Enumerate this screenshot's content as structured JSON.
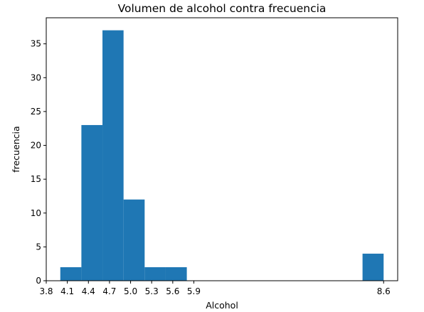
{
  "chart_data": {
    "type": "bar",
    "title": "Volumen de alcohol contra frecuencia",
    "xlabel": "Alcohol",
    "ylabel": "frecuencia",
    "bin_width": 0.3,
    "bins": [
      {
        "start": 4.0,
        "end": 4.3,
        "count": 2
      },
      {
        "start": 4.3,
        "end": 4.6,
        "count": 23
      },
      {
        "start": 4.6,
        "end": 4.9,
        "count": 37
      },
      {
        "start": 4.9,
        "end": 5.2,
        "count": 12
      },
      {
        "start": 5.2,
        "end": 5.5,
        "count": 2
      },
      {
        "start": 5.5,
        "end": 5.8,
        "count": 2
      },
      {
        "start": 8.3,
        "end": 8.6,
        "count": 4
      }
    ],
    "xlim": [
      3.8,
      8.8
    ],
    "ylim": [
      0,
      38.85
    ],
    "xticks": [
      3.8,
      4.1,
      4.4,
      4.7,
      5.0,
      5.3,
      5.6,
      5.9,
      8.6
    ],
    "xtick_labels": [
      "3.8",
      "4.1",
      "4.4",
      "4.7",
      "5.0",
      "5.3",
      "5.6",
      "5.9",
      "8.6"
    ],
    "yticks": [
      0,
      5,
      10,
      15,
      20,
      25,
      30,
      35
    ],
    "ytick_labels": [
      "0",
      "5",
      "10",
      "15",
      "20",
      "25",
      "30",
      "35"
    ],
    "bar_color": "#1f77b4",
    "grid": false,
    "legend": "none"
  }
}
